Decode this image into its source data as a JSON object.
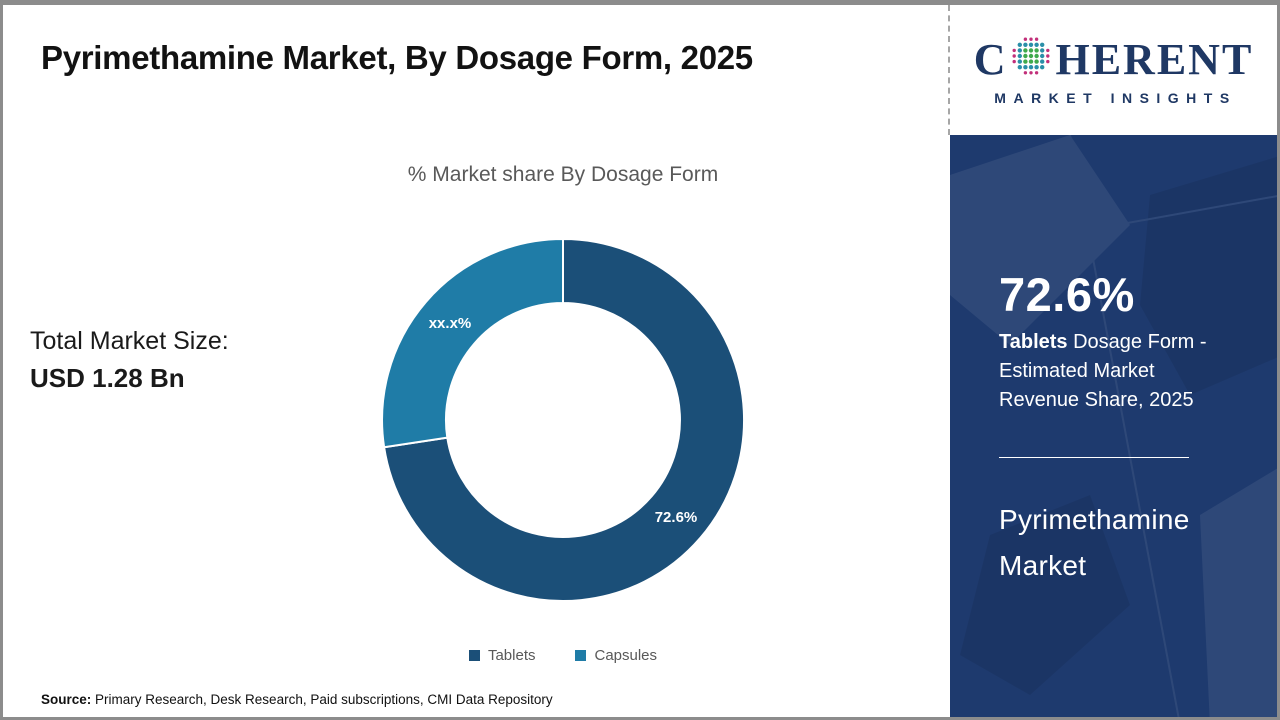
{
  "header": {
    "title": "Pyrimethamine Market, By Dosage Form, 2025"
  },
  "logo": {
    "brand_c": "C",
    "brand_rest": "HERENT",
    "tagline": "MARKET INSIGHTS",
    "brand_color": "#1f3864",
    "globe_colors": {
      "center": "#3faa4c",
      "mid": "#2a8fa8",
      "outer": "#c2307a"
    }
  },
  "left_panel": {
    "market_size_label": "Total Market Size:",
    "market_size_value": "USD 1.28 Bn"
  },
  "chart_data": {
    "type": "pie",
    "subtype": "donut",
    "title": "% Market share By Dosage Form",
    "categories": [
      "Tablets",
      "Capsules"
    ],
    "values": [
      72.6,
      27.4
    ],
    "slice_labels": [
      "72.6%",
      "xx.x%"
    ],
    "colors": [
      "#1b4f78",
      "#1f7ca7"
    ],
    "start_angle_deg": 0,
    "direction": "clockwise",
    "inner_radius_ratio": 0.645,
    "legend_position": "bottom",
    "slice_label_color": "#ffffff"
  },
  "legend": {
    "items": [
      {
        "label": "Tablets",
        "color": "#1b4f78"
      },
      {
        "label": "Capsules",
        "color": "#1f7ca7"
      }
    ]
  },
  "sidebar": {
    "panel_bg": "#1e3a6e",
    "stat_value": "72.6%",
    "stat_label_bold": "Tablets",
    "stat_label_rest": " Dosage Form - Estimated Market Revenue Share, 2025",
    "panel_title": "Pyrimethamine Market"
  },
  "footer": {
    "source_label": "Source:",
    "source_text": " Primary Research, Desk Research, Paid subscriptions, CMI Data Repository"
  }
}
